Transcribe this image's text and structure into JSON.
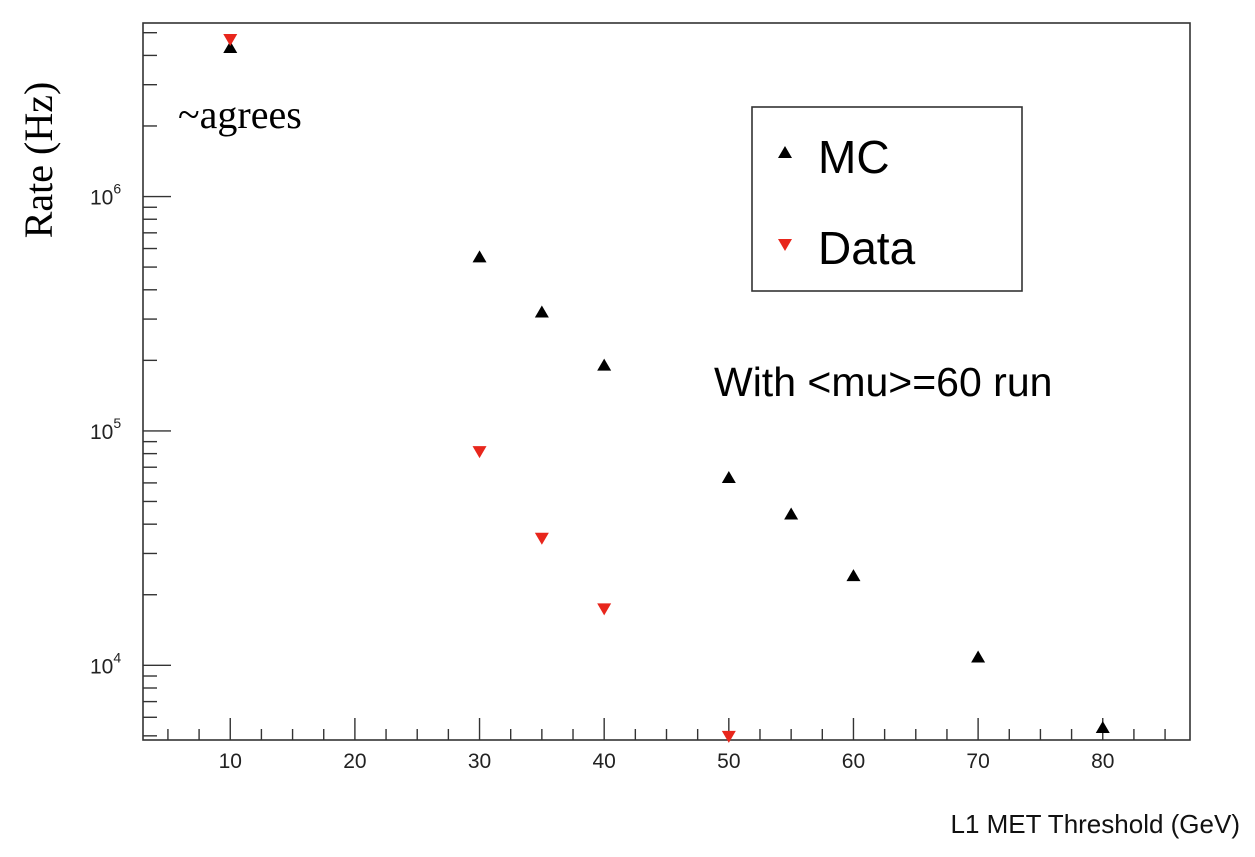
{
  "chart_data": {
    "type": "scatter",
    "xlabel": "L1 MET Threshold (GeV)",
    "ylabel": "Rate (Hz)",
    "y_scale": "log",
    "xlim": [
      3,
      87
    ],
    "ylim": [
      4800,
      5500000
    ],
    "x_ticks": [
      10,
      20,
      30,
      40,
      50,
      60,
      70,
      80
    ],
    "y_ticks": [
      {
        "value": 10000,
        "mantissa": "10",
        "exponent": "4"
      },
      {
        "value": 100000,
        "mantissa": "10",
        "exponent": "5"
      },
      {
        "value": 1000000,
        "mantissa": "10",
        "exponent": "6"
      }
    ],
    "grid": false,
    "legend": {
      "position": "top-right",
      "box": true
    },
    "series": [
      {
        "name": "MC",
        "marker": "triangle-up",
        "color": "#000000",
        "x": [
          10,
          30,
          35,
          40,
          50,
          55,
          60,
          70,
          80
        ],
        "y": [
          4300000,
          550000,
          320000,
          190000,
          63000,
          44000,
          24000,
          10800,
          5400
        ]
      },
      {
        "name": "Data",
        "marker": "triangle-down",
        "color": "#e8261c",
        "x": [
          10,
          30,
          35,
          40,
          50
        ],
        "y": [
          4700000,
          82000,
          35000,
          17500,
          5000
        ]
      }
    ],
    "annotations": [
      {
        "text": "~agrees",
        "near_x": 10
      },
      {
        "text": "With <mu>=60 run"
      }
    ]
  }
}
